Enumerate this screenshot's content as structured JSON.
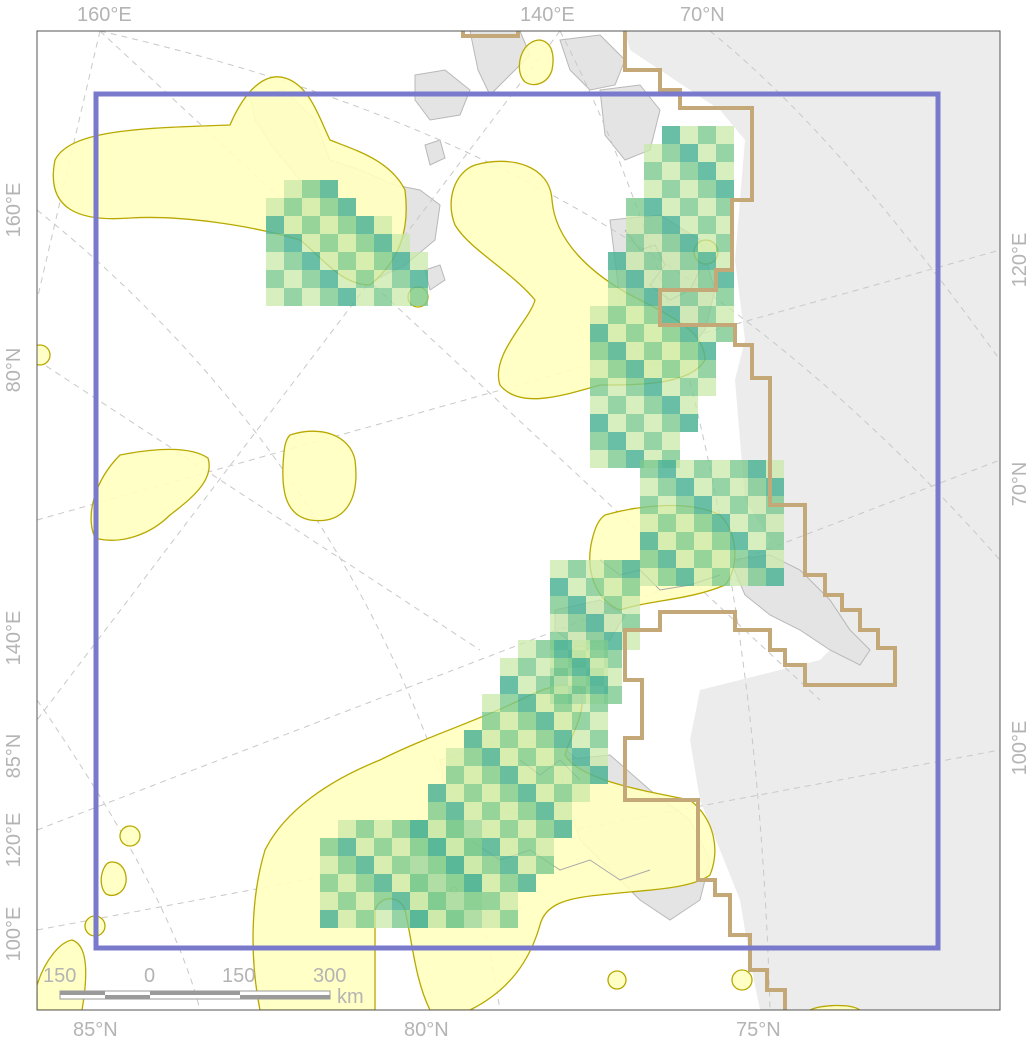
{
  "map": {
    "graticule_labels": {
      "top": [
        "160°E",
        "140°E",
        "70°N"
      ],
      "bottom": [
        "85°N",
        "80°N",
        "75°N"
      ],
      "left": [
        "160°E",
        "80°N",
        "140°E",
        "85°N",
        "120°E",
        "100°E"
      ],
      "right": [
        "120°E",
        "70°N",
        "100°E"
      ]
    },
    "scale_bar": {
      "ticks": [
        "150",
        "0",
        "150",
        "300"
      ],
      "unit": "km"
    },
    "colors": {
      "land": "#e5e5e5",
      "land_outline": "#b0b0b0",
      "study_box": "#7a7acc",
      "boundary": "#c4a878",
      "yellow_fill": "#ffffc0",
      "yellow_stroke": "#b8a800",
      "green_light": "#c9e8a8",
      "green_mid": "#7cc98e",
      "teal_dark": "#4fb396"
    }
  }
}
